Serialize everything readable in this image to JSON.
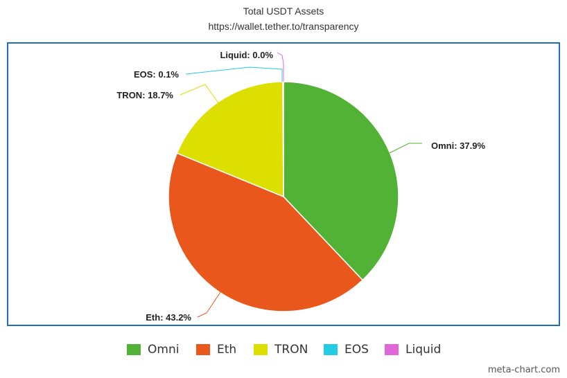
{
  "title": "Total USDT Assets",
  "subtitle": "https://wallet.tether.to/transparency",
  "watermark": "meta-chart.com",
  "chart_data": {
    "type": "pie",
    "title": "Total USDT Assets",
    "subtitle": "https://wallet.tether.to/transparency",
    "slices": [
      {
        "name": "Omni",
        "value": 37.9,
        "label": "Omni: 37.9%",
        "color": "#52b235"
      },
      {
        "name": "Eth",
        "value": 43.2,
        "label": "Eth: 43.2%",
        "color": "#ea571c"
      },
      {
        "name": "TRON",
        "value": 18.7,
        "label": "TRON: 18.7%",
        "color": "#dddf00"
      },
      {
        "name": "EOS",
        "value": 0.1,
        "label": "EOS: 0.1%",
        "color": "#24cbe5"
      },
      {
        "name": "Liquid",
        "value": 0.0,
        "label": "Liquid: 0.0%",
        "color": "#e067d8"
      }
    ],
    "legend": [
      "Omni",
      "Eth",
      "TRON",
      "EOS",
      "Liquid"
    ],
    "legend_position": "bottom"
  }
}
